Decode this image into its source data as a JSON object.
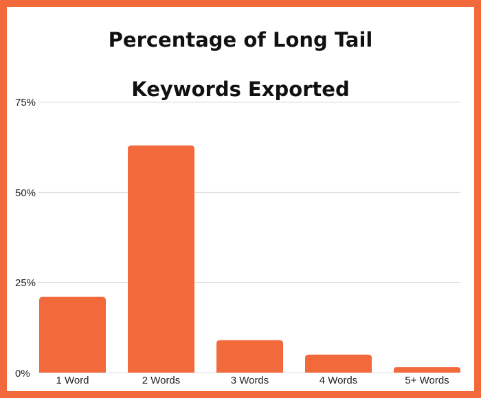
{
  "chart_data": {
    "type": "bar",
    "title_lines": [
      "Percentage of Long Tail",
      "Keywords Exported"
    ],
    "categories": [
      "1 Word",
      "2 Words",
      "3 Words",
      "4 Words",
      "5+ Words"
    ],
    "values": [
      21,
      63,
      9,
      5,
      1.5
    ],
    "ylim": [
      0,
      75
    ],
    "ytick_labels": [
      "75%",
      "50%",
      "25%",
      "0%"
    ],
    "grid": true,
    "colors": {
      "bar": "#f26a3b",
      "frame": "#f26a3b",
      "grid": "#dcdcdc"
    }
  }
}
